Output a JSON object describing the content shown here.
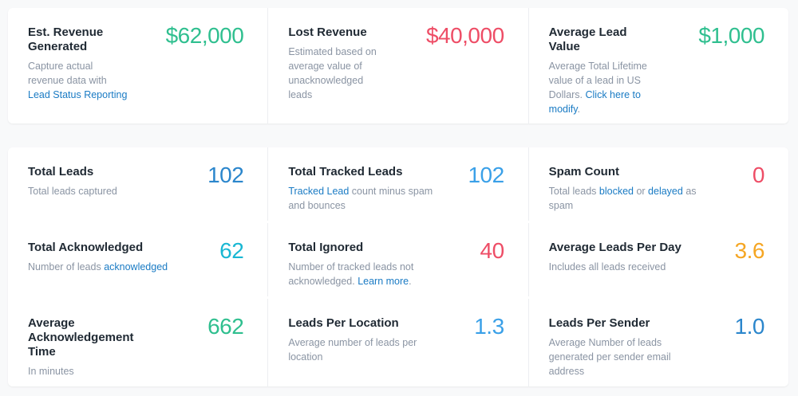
{
  "revenue": [
    {
      "title": "Est. Revenue Generated",
      "value": "$62,000",
      "desc_plain": "Capture actual revenue data with ",
      "desc_link": "Lead Status Reporting",
      "desc_after": "",
      "color": "#2fbf8f"
    },
    {
      "title": "Lost Revenue",
      "value": "$40,000",
      "desc_plain": "Estimated based on average value of unacknowledged leads",
      "color": "#ee4d66"
    },
    {
      "title": "Average Lead Value",
      "value": "$1,000",
      "desc_plain": "Average Total Lifetime value of a lead in US Dollars. ",
      "desc_link": "Click here to modify",
      "desc_after": ".",
      "color": "#2fbf8f"
    }
  ],
  "stats": {
    "total_leads": {
      "title": "Total Leads",
      "value": "102",
      "desc": "Total leads captured",
      "color": "#2b86cc"
    },
    "total_tracked": {
      "title": "Total Tracked Leads",
      "value": "102",
      "desc_link": "Tracked Lead",
      "desc_after": " count minus spam and bounces",
      "color": "#3aa0e8"
    },
    "spam_count": {
      "title": "Spam Count",
      "value": "0",
      "desc_plain": "Total leads ",
      "desc_link1": "blocked",
      "desc_mid": " or ",
      "desc_link2": "delayed",
      "desc_after": " as spam",
      "color": "#ee4d66"
    },
    "total_ack": {
      "title": "Total Acknowledged",
      "value": "62",
      "desc_plain": "Number of leads ",
      "desc_link": "acknowledged",
      "color": "#19b7d3"
    },
    "total_ignored": {
      "title": "Total Ignored",
      "value": "40",
      "desc_plain": "Number of tracked leads not acknowledged. ",
      "desc_link": "Learn more",
      "desc_after": ".",
      "color": "#ee4d66"
    },
    "avg_per_day": {
      "title": "Average Leads Per Day",
      "value": "3.6",
      "desc": "Includes all leads received",
      "color": "#f5a623"
    },
    "avg_ack_time": {
      "title": "Average Acknowledgement Time",
      "value": "662",
      "desc": "In minutes",
      "color": "#2fbf8f"
    },
    "per_location": {
      "title": "Leads Per Location",
      "value": "1.3",
      "desc": "Average number of leads per location",
      "color": "#3aa0e8"
    },
    "per_sender": {
      "title": "Leads Per Sender",
      "value": "1.0",
      "desc": "Average Number of leads generated per sender email address",
      "color": "#2b86cc"
    }
  }
}
